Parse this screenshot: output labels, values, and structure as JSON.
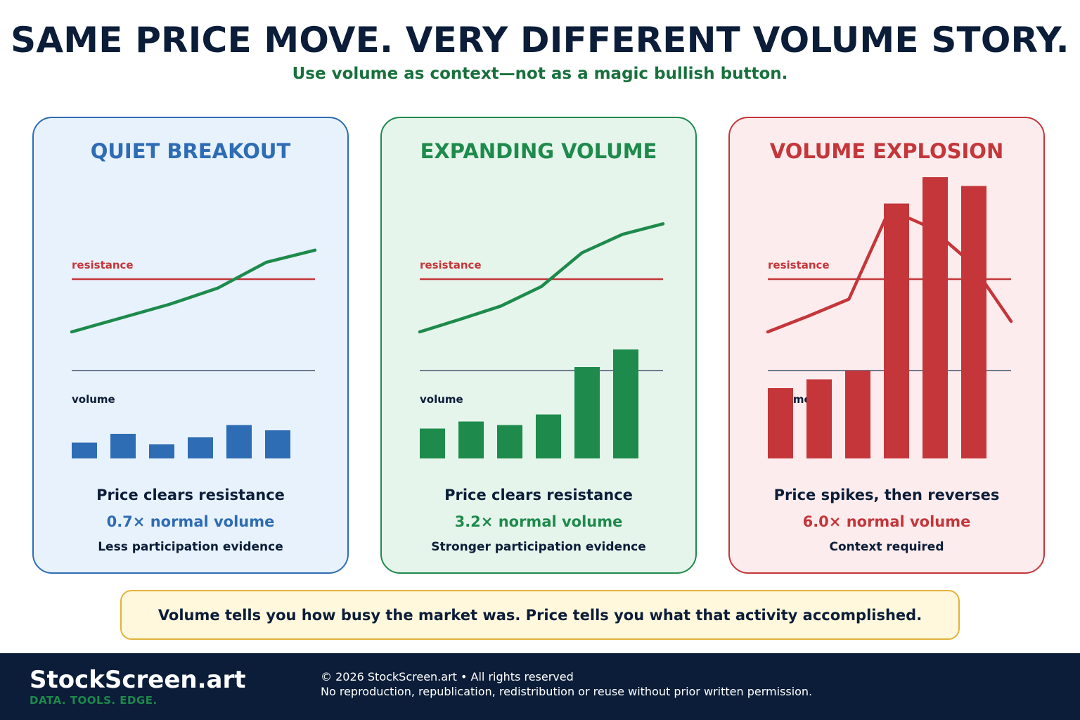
{
  "header": {
    "title": "SAME PRICE MOVE. VERY DIFFERENT VOLUME STORY.",
    "subtitle": "Use volume as context—not as a magic bullish button."
  },
  "labels": {
    "resistance": "resistance",
    "volume": "volume"
  },
  "colors": {
    "blue": "#2e6cb4",
    "green": "#1e8a4c",
    "red": "#c4363a",
    "resistance_line": "#c4363a",
    "baseline": "#5a6a80",
    "navy": "#0b1d38"
  },
  "panels": [
    {
      "title": "QUIET BREAKOUT",
      "caption": "Price clears resistance",
      "volume_text": "0.7× normal volume",
      "note": "Less participation evidence"
    },
    {
      "title": "EXPANDING VOLUME",
      "caption": "Price clears resistance",
      "volume_text": "3.2× normal volume",
      "note": "Stronger participation evidence"
    },
    {
      "title": "VOLUME EXPLOSION",
      "caption": "Price spikes, then reverses",
      "volume_text": "6.0× normal volume",
      "note": "Context required"
    }
  ],
  "chart_data": [
    {
      "type": "line",
      "title": "QUIET BREAKOUT",
      "series": [
        {
          "values": [
            0,
            0.26,
            0.52,
            0.83,
            1.32,
            1.55
          ]
        },
        {
          "values": [
            0.09,
            0.14,
            0.08,
            0.12,
            0.19,
            0.16
          ]
        }
      ],
      "resistance_level": 1.0,
      "color": "#2e6cb4"
    },
    {
      "type": "line",
      "title": "EXPANDING VOLUME",
      "series": [
        {
          "values": [
            0,
            0.24,
            0.49,
            0.86,
            1.5,
            1.85,
            2.05
          ]
        },
        {
          "values": [
            0.17,
            0.21,
            0.19,
            0.25,
            0.52,
            0.62
          ]
        }
      ],
      "resistance_level": 1.0,
      "color": "#1e8a4c"
    },
    {
      "type": "line",
      "title": "VOLUME EXPLOSION",
      "series": [
        {
          "values": [
            0,
            0.3,
            0.62,
            2.32,
            1.98,
            1.32,
            0.2
          ]
        },
        {
          "values": [
            0.4,
            0.45,
            0.5,
            1.45,
            1.6,
            1.55
          ]
        }
      ],
      "resistance_level": 1.0,
      "color": "#c4363a"
    }
  ],
  "callout": {
    "text": "Volume tells you how busy the market was. Price tells you what that activity accomplished."
  },
  "footer": {
    "brand": "StockScreen.art",
    "tagline": "DATA. TOOLS. EDGE.",
    "copyright": "© 2026 StockScreen.art • All rights reserved",
    "notice": "No reproduction, republication, redistribution or reuse without prior written permission."
  }
}
